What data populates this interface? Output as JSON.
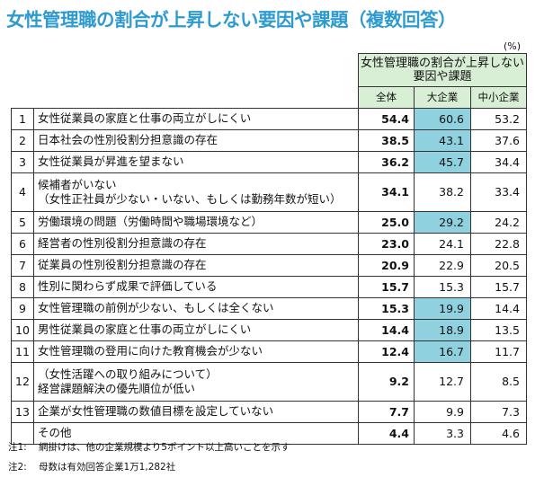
{
  "chart_data": {
    "type": "table",
    "title": "女性管理職の割合が上昇しない要因や課題（複数回答）",
    "unit": "(%)",
    "group_header": "女性管理職の割合が上昇しない要因や課題",
    "columns": [
      "全体",
      "大企業",
      "中小企業"
    ],
    "rows": [
      {
        "no": "1",
        "lines": [
          "女性従業員の家庭と仕事の両立がしにくい"
        ],
        "total": "54.4",
        "large": "60.6",
        "small": "53.2",
        "hl": true
      },
      {
        "no": "2",
        "lines": [
          "日本社会の性別役割分担意識の存在"
        ],
        "total": "38.5",
        "large": "43.1",
        "small": "37.6",
        "hl": true
      },
      {
        "no": "3",
        "lines": [
          "女性従業員が昇進を望まない"
        ],
        "total": "36.2",
        "large": "45.7",
        "small": "34.4",
        "hl": true
      },
      {
        "no": "4",
        "lines": [
          "候補者がいない",
          "（女性正社員が少ない・いない、もしくは勤務年数が短い）"
        ],
        "total": "34.1",
        "large": "38.2",
        "small": "33.4",
        "hl": false
      },
      {
        "no": "5",
        "lines": [
          "労働環境の問題（労働時間や職場環境など）"
        ],
        "total": "25.0",
        "large": "29.2",
        "small": "24.2",
        "hl": true
      },
      {
        "no": "6",
        "lines": [
          "経営者の性別役割分担意識の存在"
        ],
        "total": "23.0",
        "large": "24.1",
        "small": "22.8",
        "hl": false
      },
      {
        "no": "7",
        "lines": [
          "従業員の性別役割分担意識の存在"
        ],
        "total": "20.9",
        "large": "22.9",
        "small": "20.5",
        "hl": false
      },
      {
        "no": "8",
        "lines": [
          "性別に関わらず成果で評価している"
        ],
        "total": "15.7",
        "large": "15.3",
        "small": "15.7",
        "hl": false
      },
      {
        "no": "9",
        "lines": [
          "女性管理職の前例が少ない、もしくは全くない"
        ],
        "total": "15.3",
        "large": "19.9",
        "small": "14.4",
        "hl": true
      },
      {
        "no": "10",
        "lines": [
          "男性従業員の家庭と仕事の両立がしにくい"
        ],
        "total": "14.4",
        "large": "18.9",
        "small": "13.5",
        "hl": true
      },
      {
        "no": "11",
        "lines": [
          "女性管理職の登用に向けた教育機会が少ない"
        ],
        "total": "12.4",
        "large": "16.7",
        "small": "11.7",
        "hl": true
      },
      {
        "no": "12",
        "lines": [
          "（女性活躍への取り組みについて）",
          "経営課題解決の優先順位が低い"
        ],
        "total": "9.2",
        "large": "12.7",
        "small": "8.5",
        "hl": false
      },
      {
        "no": "13",
        "lines": [
          "企業が女性管理職の数値目標を設定していない"
        ],
        "total": "7.7",
        "large": "9.9",
        "small": "7.3",
        "hl": false
      },
      {
        "no": "",
        "lines": [
          "その他"
        ],
        "total": "4.4",
        "large": "3.3",
        "small": "4.6",
        "hl": false
      }
    ],
    "highlight_color": "#8fd1df",
    "header_color": "#d8eed5"
  },
  "notes": [
    {
      "label": "注1:",
      "text": "網掛けは、他の企業規模より5ポイント以上高いことを示す"
    },
    {
      "label": "注2:",
      "text": "母数は有効回答企業1万1,282社"
    }
  ]
}
